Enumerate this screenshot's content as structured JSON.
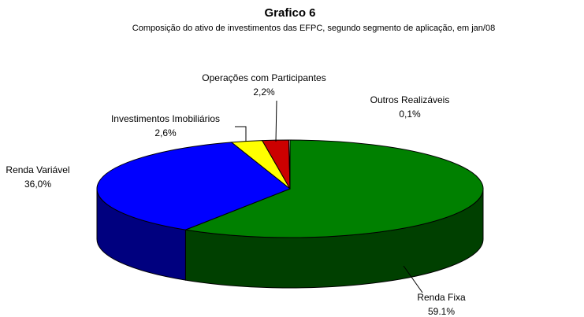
{
  "chart_data": {
    "type": "pie3d",
    "title": "Grafico 6",
    "subtitle": "Composição do ativo de investimentos das EFPC, segundo segmento de aplicação, em jan/08",
    "categories": [
      "Renda Fixa",
      "Renda Variável",
      "Investimentos Imobiliários",
      "Operações com Participantes",
      "Outros Realizáveis"
    ],
    "values": [
      59.1,
      36.0,
      2.6,
      2.2,
      0.1
    ],
    "value_labels": [
      "59.1%",
      "36,0%",
      "2,6%",
      "2,2%",
      "0,1%"
    ],
    "colors": [
      "#008000",
      "#0000ff",
      "#ffff00",
      "#cc0000",
      "#ffffff"
    ]
  }
}
